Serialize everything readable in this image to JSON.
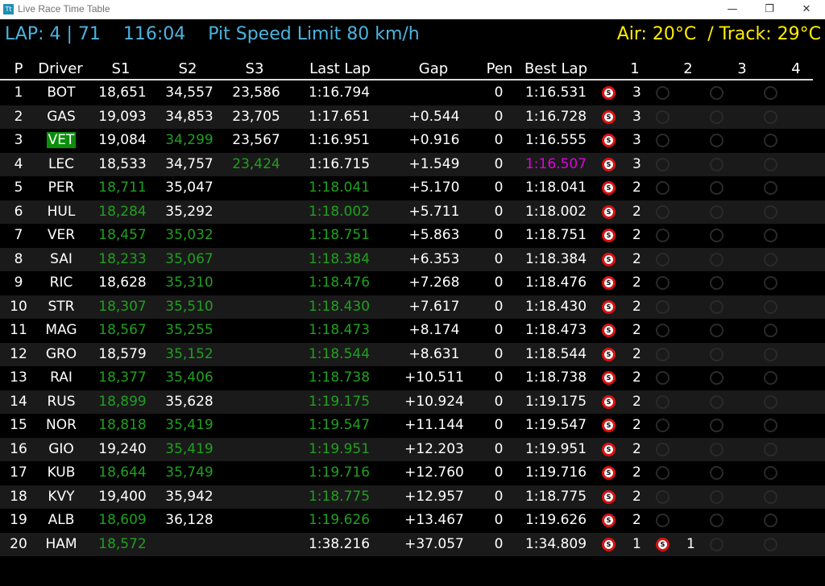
{
  "window": {
    "title": "Live Race Time Table",
    "icon_label": "Tt"
  },
  "header": {
    "lap_info": "LAP: 4 | 71    116:04    Pit Speed Limit 80 km/h",
    "weather": "Air: 20°C  / Track: 29°C",
    "accent_color": "#4bb3e0",
    "weather_color": "#ffee00"
  },
  "columns": [
    "P",
    "Driver",
    "S1",
    "S2",
    "S3",
    "Last Lap",
    "Gap",
    "Pen",
    "Best Lap",
    "1",
    "2",
    "3",
    "4"
  ],
  "colors": {
    "personal_best": "#1fa01f",
    "overall_best": "#e000e0",
    "soft_tyre": "#e01010"
  },
  "rows": [
    {
      "p": "1",
      "driver": "BOT",
      "s1": "18,651",
      "s2": "34,557",
      "s3": "23,586",
      "last": "1:16.794",
      "gap": "",
      "pen": "0",
      "best": "1:16.531",
      "stints": [
        {
          "tyre": "soft",
          "laps": "3"
        }
      ]
    },
    {
      "p": "2",
      "driver": "GAS",
      "s1": "19,093",
      "s2": "34,853",
      "s3": "23,705",
      "last": "1:17.651",
      "gap": "+0.544",
      "pen": "0",
      "best": "1:16.728",
      "stints": [
        {
          "tyre": "soft",
          "laps": "3"
        }
      ]
    },
    {
      "p": "3",
      "driver": "VET",
      "driver_hl": true,
      "s1": "19,084",
      "s2": "34,299",
      "s2_g": true,
      "s3": "23,567",
      "last": "1:16.951",
      "gap": "+0.916",
      "pen": "0",
      "best": "1:16.555",
      "stints": [
        {
          "tyre": "soft",
          "laps": "3"
        }
      ]
    },
    {
      "p": "4",
      "driver": "LEC",
      "s1": "18,533",
      "s2": "34,757",
      "s3": "23,424",
      "s3_g": true,
      "last": "1:16.715",
      "gap": "+1.549",
      "pen": "0",
      "best": "1:16.507",
      "best_p": true,
      "stints": [
        {
          "tyre": "soft",
          "laps": "3"
        }
      ]
    },
    {
      "p": "5",
      "driver": "PER",
      "s1": "18,711",
      "s1_g": true,
      "s2": "35,047",
      "s3": "",
      "last": "1:18.041",
      "last_g": true,
      "gap": "+5.170",
      "pen": "0",
      "best": "1:18.041",
      "stints": [
        {
          "tyre": "soft",
          "laps": "2"
        }
      ]
    },
    {
      "p": "6",
      "driver": "HUL",
      "s1": "18,284",
      "s1_g": true,
      "s2": "35,292",
      "s3": "",
      "last": "1:18.002",
      "last_g": true,
      "gap": "+5.711",
      "pen": "0",
      "best": "1:18.002",
      "stints": [
        {
          "tyre": "soft",
          "laps": "2"
        }
      ]
    },
    {
      "p": "7",
      "driver": "VER",
      "s1": "18,457",
      "s1_g": true,
      "s2": "35,032",
      "s2_g": true,
      "s3": "",
      "last": "1:18.751",
      "last_g": true,
      "gap": "+5.863",
      "pen": "0",
      "best": "1:18.751",
      "stints": [
        {
          "tyre": "soft",
          "laps": "2"
        }
      ]
    },
    {
      "p": "8",
      "driver": "SAI",
      "s1": "18,233",
      "s1_g": true,
      "s2": "35,067",
      "s2_g": true,
      "s3": "",
      "last": "1:18.384",
      "last_g": true,
      "gap": "+6.353",
      "pen": "0",
      "best": "1:18.384",
      "stints": [
        {
          "tyre": "soft",
          "laps": "2"
        }
      ]
    },
    {
      "p": "9",
      "driver": "RIC",
      "s1": "18,628",
      "s2": "35,310",
      "s2_g": true,
      "s3": "",
      "last": "1:18.476",
      "last_g": true,
      "gap": "+7.268",
      "pen": "0",
      "best": "1:18.476",
      "stints": [
        {
          "tyre": "soft",
          "laps": "2"
        }
      ]
    },
    {
      "p": "10",
      "driver": "STR",
      "s1": "18,307",
      "s1_g": true,
      "s2": "35,510",
      "s2_g": true,
      "s3": "",
      "last": "1:18.430",
      "last_g": true,
      "gap": "+7.617",
      "pen": "0",
      "best": "1:18.430",
      "stints": [
        {
          "tyre": "soft",
          "laps": "2"
        }
      ]
    },
    {
      "p": "11",
      "driver": "MAG",
      "s1": "18,567",
      "s1_g": true,
      "s2": "35,255",
      "s2_g": true,
      "s3": "",
      "last": "1:18.473",
      "last_g": true,
      "gap": "+8.174",
      "pen": "0",
      "best": "1:18.473",
      "stints": [
        {
          "tyre": "soft",
          "laps": "2"
        }
      ]
    },
    {
      "p": "12",
      "driver": "GRO",
      "s1": "18,579",
      "s2": "35,152",
      "s2_g": true,
      "s3": "",
      "last": "1:18.544",
      "last_g": true,
      "gap": "+8.631",
      "pen": "0",
      "best": "1:18.544",
      "stints": [
        {
          "tyre": "soft",
          "laps": "2"
        }
      ]
    },
    {
      "p": "13",
      "driver": "RAI",
      "s1": "18,377",
      "s1_g": true,
      "s2": "35,406",
      "s2_g": true,
      "s3": "",
      "last": "1:18.738",
      "last_g": true,
      "gap": "+10.511",
      "pen": "0",
      "best": "1:18.738",
      "stints": [
        {
          "tyre": "soft",
          "laps": "2"
        }
      ]
    },
    {
      "p": "14",
      "driver": "RUS",
      "s1": "18,899",
      "s1_g": true,
      "s2": "35,628",
      "s3": "",
      "last": "1:19.175",
      "last_g": true,
      "gap": "+10.924",
      "pen": "0",
      "best": "1:19.175",
      "stints": [
        {
          "tyre": "soft",
          "laps": "2"
        }
      ]
    },
    {
      "p": "15",
      "driver": "NOR",
      "s1": "18,818",
      "s1_g": true,
      "s2": "35,419",
      "s2_g": true,
      "s3": "",
      "last": "1:19.547",
      "last_g": true,
      "gap": "+11.144",
      "pen": "0",
      "best": "1:19.547",
      "stints": [
        {
          "tyre": "soft",
          "laps": "2"
        }
      ]
    },
    {
      "p": "16",
      "driver": "GIO",
      "s1": "19,240",
      "s2": "35,419",
      "s2_g": true,
      "s3": "",
      "last": "1:19.951",
      "last_g": true,
      "gap": "+12.203",
      "pen": "0",
      "best": "1:19.951",
      "stints": [
        {
          "tyre": "soft",
          "laps": "2"
        }
      ]
    },
    {
      "p": "17",
      "driver": "KUB",
      "s1": "18,644",
      "s1_g": true,
      "s2": "35,749",
      "s2_g": true,
      "s3": "",
      "last": "1:19.716",
      "last_g": true,
      "gap": "+12.760",
      "pen": "0",
      "best": "1:19.716",
      "stints": [
        {
          "tyre": "soft",
          "laps": "2"
        }
      ]
    },
    {
      "p": "18",
      "driver": "KVY",
      "s1": "19,400",
      "s2": "35,942",
      "s3": "",
      "last": "1:18.775",
      "last_g": true,
      "gap": "+12.957",
      "pen": "0",
      "best": "1:18.775",
      "stints": [
        {
          "tyre": "soft",
          "laps": "2"
        }
      ]
    },
    {
      "p": "19",
      "driver": "ALB",
      "s1": "18,609",
      "s1_g": true,
      "s2": "36,128",
      "s3": "",
      "last": "1:19.626",
      "last_g": true,
      "gap": "+13.467",
      "pen": "0",
      "best": "1:19.626",
      "stints": [
        {
          "tyre": "soft",
          "laps": "2"
        }
      ]
    },
    {
      "p": "20",
      "driver": "HAM",
      "s1": "18,572",
      "s1_g": true,
      "s2": "",
      "s3": "",
      "last": "1:38.216",
      "gap": "+37.057",
      "pen": "0",
      "best": "1:34.809",
      "stints": [
        {
          "tyre": "soft",
          "laps": "1"
        },
        {
          "tyre": "soft",
          "laps": "1"
        }
      ]
    }
  ]
}
